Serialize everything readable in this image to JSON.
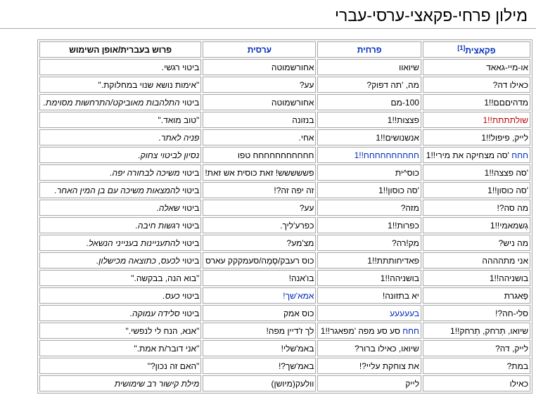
{
  "page": {
    "title": "מילון פרחי-פקאצי-ערסי-עברי"
  },
  "colors": {
    "link": "#002bb8",
    "redlink": "#ba0000",
    "border": "#aaaaaa"
  },
  "table": {
    "headers": {
      "pakatzit": "פקאצית",
      "footnote": "[1]",
      "prachit": "פרחית",
      "arsit": "ערסית",
      "meaning": "פרוש בעברית/אופן השימוש"
    },
    "rows": [
      {
        "c1": {
          "text": "או-מיי-גאאד"
        },
        "c2": {
          "text": "שיואוו"
        },
        "c3": {
          "text": "אחורשמוטה"
        },
        "c4": {
          "plain": "ביטוי רגשי."
        }
      },
      {
        "c1": {
          "text": "כאילו דה?"
        },
        "c2": {
          "text": "מה, 'תה דפוק?"
        },
        "c3": {
          "text": "עע?"
        },
        "c4": {
          "plain": "\"אימות נושא שנוי במחלוקת.\""
        }
      },
      {
        "c1": {
          "text": "מדהיםםם!!1"
        },
        "c2": {
          "text": "100-מם"
        },
        "c3": {
          "text": "אחורשמוטה"
        },
        "c4": {
          "plain": "ביטוי ",
          "em": "התלהבות מאוביקט/התרחשות מסוימת."
        }
      },
      {
        "c1": {
          "redlink": "שולתתתת!!1"
        },
        "c2": {
          "text": "פצצות!!1"
        },
        "c3": {
          "text": "בנזונה"
        },
        "c4": {
          "plain": "\"טוב מואד.\""
        }
      },
      {
        "c1": {
          "text": "לייק, פיפול!!1"
        },
        "c2": {
          "text": "אנשנושים!!1"
        },
        "c3": {
          "text": "אחי."
        },
        "c4": {
          "em": "פניה לאתר."
        }
      },
      {
        "c1": {
          "link": "חחח",
          "text": " 'סה מצחיקה את מירי!!1"
        },
        "c2": {
          "link": "חחחחחחחחחח!!1"
        },
        "c3": {
          "text": "חחחחחחחחחחח טפו"
        },
        "c4": {
          "em": "נסיון לביטוי צחוק."
        }
      },
      {
        "c1": {
          "text": "'סה פצצה!!1"
        },
        "c2": {
          "text": "כוס^ית"
        },
        "c3": {
          "text": "פששששש! זאת כוסית אש זאת!"
        },
        "c4": {
          "plain": "ביטוי ",
          "em": "משיכה לבחורה יפה."
        }
      },
      {
        "c1": {
          "text": "'סה כוסון!!1"
        },
        "c2": {
          "text": "'סה כוסון!!1"
        },
        "c3": {
          "text": "זה יפה זה?!"
        },
        "c4": {
          "plain": "ביטוי ",
          "em": "להמצאות משיכה עם בן המין האחר."
        }
      },
      {
        "c1": {
          "text": "מה סה?!"
        },
        "c2": {
          "text": "מזה?"
        },
        "c3": {
          "text": "עע?"
        },
        "c4": {
          "plain": "ביטוי ",
          "em": "שאלה."
        }
      },
      {
        "c1": {
          "text": "גְשמאמי!!1"
        },
        "c2": {
          "text": "כפרות!!1"
        },
        "c3": {
          "text": "כפרע'ליך."
        },
        "c4": {
          "plain": "ביטוי ",
          "em": "רגשות חיבה."
        }
      },
      {
        "c1": {
          "text": "מה ניש?"
        },
        "c2": {
          "text": "מק!רה?"
        },
        "c3": {
          "text": "מצ'מע?"
        },
        "c4": {
          "plain": "ביטוי ",
          "em": "להתעניינות בענייני הנשאל."
        }
      },
      {
        "c1": {
          "text": "אני מתהההה"
        },
        "c2": {
          "text": "פאדיחותתת!!1"
        },
        "c3": {
          "text": "כוס רעבק/סֶמֶה/סעמקקק עארס"
        },
        "c4": {
          "plain": "ביטוי ",
          "em": "לכעס, כתוצאה מכישלון."
        }
      },
      {
        "c1": {
          "text": "בושניהה!!1"
        },
        "c2": {
          "text": "בושניהה!!1"
        },
        "c3": {
          "text": "בו'אנה!"
        },
        "c4": {
          "plain": "\"בוא הנה, בבקשה.\""
        }
      },
      {
        "c1": {
          "text": "פָאגרת"
        },
        "c2": {
          "text": "יא בתזונה!"
        },
        "c3": {
          "link": "אמא'שך!"
        },
        "c4": {
          "plain": "ביטוי ",
          "em": "כעס."
        }
      },
      {
        "c1": {
          "text": "סלי-חה?!"
        },
        "c2": {
          "link": "בעעעעע"
        },
        "c3": {
          "text": "כוס אמק"
        },
        "c4": {
          "plain": "ביטוי ",
          "em": "סלידה עמוקה."
        }
      },
      {
        "c1": {
          "text": "שיואו, תְרחק, תְרחק!!1"
        },
        "c2": {
          "link": "חחח",
          "text": " סע סע מפה 'מפאגר!!1"
        },
        "c3": {
          "text": "לך ז'דיין מפה!"
        },
        "c4": {
          "plain": "\"אנא, הנח לי לנפשי.\""
        }
      },
      {
        "c1": {
          "text": "לייק, דה?"
        },
        "c2": {
          "text": "שיואו, כאילו ברור?"
        },
        "c3": {
          "text": "באמ'שלי!"
        },
        "c4": {
          "plain": "\"אני דובר/ת אמת.\""
        }
      },
      {
        "c1": {
          "text": "במת?"
        },
        "c2": {
          "text": "את צוחקת עליי?!"
        },
        "c3": {
          "text": "באמ'שך?!"
        },
        "c4": {
          "plain": "\"האם זה נכון?\""
        }
      },
      {
        "c1": {
          "text": "כאילו"
        },
        "c2": {
          "text": "לייק"
        },
        "c3": {
          "text": "וולעק(מיושן)"
        },
        "c4": {
          "em": "מילת קישור רב שימושית"
        }
      }
    ]
  }
}
